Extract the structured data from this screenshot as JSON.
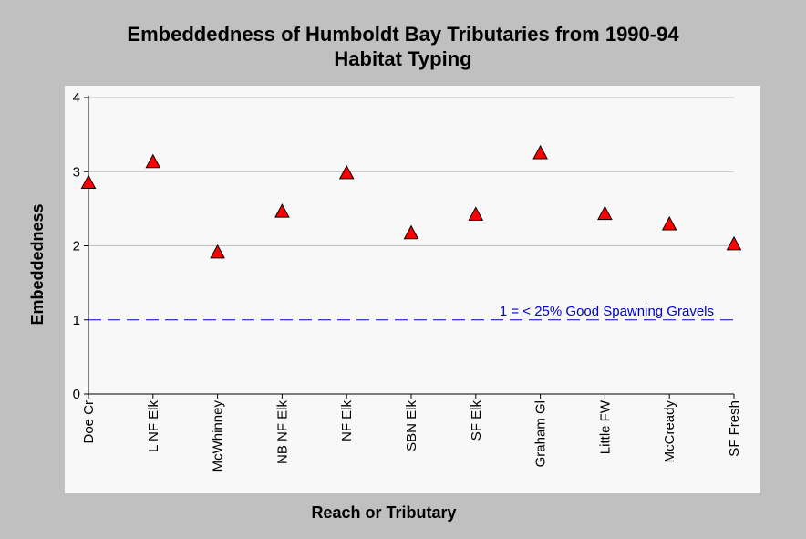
{
  "chart_data": {
    "type": "scatter",
    "title": "Embeddedness of Humboldt Bay Tributaries from 1990-94",
    "subtitle": "Habitat Typing",
    "xlabel": "Reach or Tributary",
    "ylabel": "Embeddedness",
    "ylim": [
      0,
      4
    ],
    "yticks": [
      "0",
      "1",
      "2",
      "3",
      "4"
    ],
    "grid": true,
    "categories": [
      "Doe Cr",
      "L NF Elk",
      "McWhinney",
      "NB NF Elk",
      "NF Elk",
      "SBN Elk",
      "SF Elk",
      "Graham Gl",
      "Little FW",
      "McCready",
      "SF Fresh"
    ],
    "values": [
      2.85,
      3.13,
      1.91,
      2.46,
      2.98,
      2.17,
      2.42,
      3.25,
      2.43,
      2.29,
      2.02
    ],
    "marker_color": "#ff0000",
    "reference_line": {
      "value": 1,
      "label": "1 = < 25% Good Spawning Gravels",
      "color": "#0000cc"
    }
  }
}
